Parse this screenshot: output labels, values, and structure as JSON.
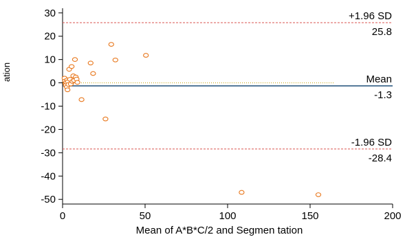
{
  "chart_data": {
    "type": "scatter",
    "title": "",
    "xlabel": "Mean of A*B*C/2 and Segmen tation",
    "ylabel": "ation",
    "xlim": [
      0,
      200
    ],
    "ylim": [
      -52,
      32
    ],
    "x_ticks": [
      0,
      50,
      100,
      150,
      200
    ],
    "y_ticks": [
      -50,
      -40,
      -30,
      -20,
      -10,
      0,
      10,
      20,
      30
    ],
    "grid": false,
    "reference_lines": [
      {
        "label": "+1.96 SD",
        "value_label": "25.8",
        "value": 25.8,
        "color": "#d9534f",
        "style": "dashed"
      },
      {
        "label": "Mean",
        "value_label": "-1.3",
        "value": -1.3,
        "color": "#1f4e79",
        "style": "solid"
      },
      {
        "label": "-1.96 SD",
        "value_label": "-28.4",
        "value": -28.4,
        "color": "#d9534f",
        "style": "dashed"
      }
    ],
    "zero_line": {
      "value": 0,
      "x_end": 165,
      "color": "#c8a000",
      "style": "dotted"
    },
    "marker_color": "#e8761a",
    "points": [
      {
        "x": 1.2,
        "y": 2.0
      },
      {
        "x": 1.5,
        "y": 0.8
      },
      {
        "x": 1.8,
        "y": -0.3
      },
      {
        "x": 2.0,
        "y": -1.0
      },
      {
        "x": 2.3,
        "y": 0.3
      },
      {
        "x": 2.6,
        "y": -1.8
      },
      {
        "x": 2.8,
        "y": 1.2
      },
      {
        "x": 3.0,
        "y": -3.0
      },
      {
        "x": 3.3,
        "y": 0.5
      },
      {
        "x": 3.6,
        "y": -0.7
      },
      {
        "x": 4.0,
        "y": 5.8
      },
      {
        "x": 4.5,
        "y": 1.5
      },
      {
        "x": 5.0,
        "y": -0.5
      },
      {
        "x": 5.5,
        "y": 7.0
      },
      {
        "x": 6.0,
        "y": 0.6
      },
      {
        "x": 6.5,
        "y": 3.0
      },
      {
        "x": 7.0,
        "y": 1.0
      },
      {
        "x": 7.5,
        "y": 10.0
      },
      {
        "x": 8.0,
        "y": 2.5
      },
      {
        "x": 8.5,
        "y": 1.6
      },
      {
        "x": 9.0,
        "y": 0.2
      },
      {
        "x": 11.5,
        "y": -7.2
      },
      {
        "x": 17.0,
        "y": 8.5
      },
      {
        "x": 18.5,
        "y": 4.0
      },
      {
        "x": 26.0,
        "y": -15.5
      },
      {
        "x": 29.5,
        "y": 16.5
      },
      {
        "x": 32.0,
        "y": 9.8
      },
      {
        "x": 50.5,
        "y": 11.8
      },
      {
        "x": 108.5,
        "y": -47.0
      },
      {
        "x": 155.0,
        "y": -48.0
      }
    ]
  }
}
